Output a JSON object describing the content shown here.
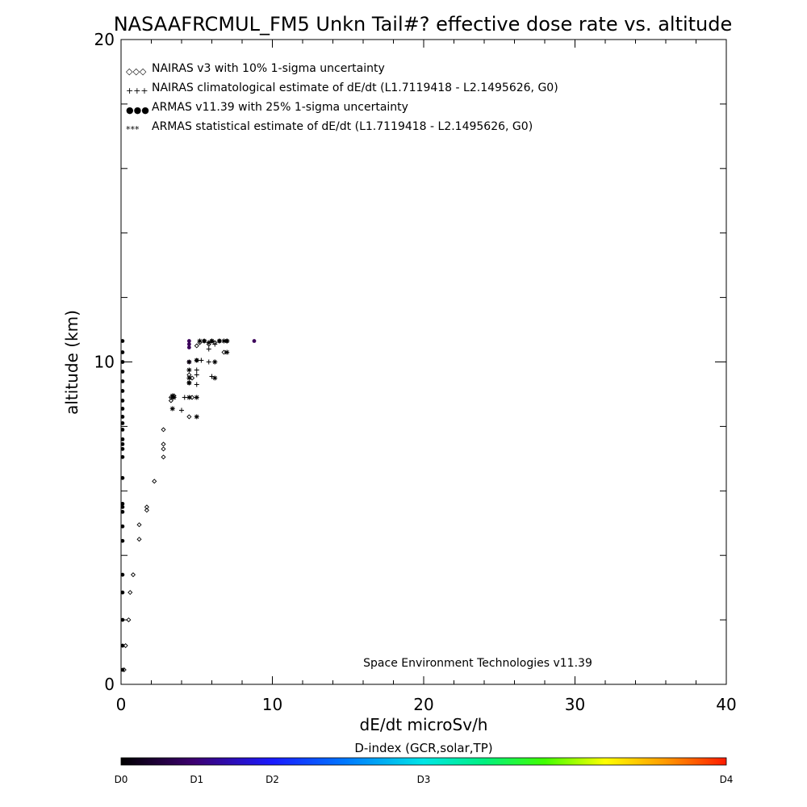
{
  "chart_data": {
    "type": "scatter",
    "title": "NASAAFRCMUL_FM5 Unkn Tail#? effective dose rate vs. altitude",
    "xlabel": "dE/dt microSv/h",
    "ylabel": "altitude (km)",
    "xlim": [
      0,
      40
    ],
    "ylim": [
      0,
      20
    ],
    "xticks": [
      "0",
      "10",
      "20",
      "30",
      "40"
    ],
    "yticks": [
      "0",
      "10",
      "20"
    ],
    "grid": false,
    "legend_position": "top-left",
    "legend": [
      {
        "marker_text": "◇◇◇",
        "label": "NAIRAS v3 with 10% 1-sigma uncertainty"
      },
      {
        "marker_text": "+++",
        "label": "NAIRAS climatological estimate of dE/dt (L1.7119418 - L2.1495626, G0)"
      },
      {
        "marker_text": "●●●",
        "label": "ARMAS v11.39 with 25% 1-sigma uncertainty"
      },
      {
        "marker_text": "***",
        "label": "ARMAS statistical estimate of dE/dt (L1.7119418 - L2.1495626, G0)"
      }
    ],
    "annotation": "Space Environment Technologies v11.39",
    "colorbar": {
      "title": "D-index (GCR,solar,TP)",
      "labels": [
        {
          "text": "D0",
          "value": 0
        },
        {
          "text": "D1",
          "value": 0.1
        },
        {
          "text": "D2",
          "value": 0.2
        },
        {
          "text": "D3",
          "value": 0.4
        },
        {
          "text": "D4",
          "value": 0.8
        }
      ],
      "range": [
        0,
        0.8
      ]
    },
    "series": [
      {
        "marker": "diamond",
        "color": "#000000",
        "points": [
          [
            0.2,
            0.45
          ],
          [
            0.3,
            1.2
          ],
          [
            0.5,
            2.0
          ],
          [
            0.6,
            2.85
          ],
          [
            0.8,
            3.4
          ],
          [
            1.2,
            4.5
          ],
          [
            1.2,
            4.95
          ],
          [
            1.7,
            5.4
          ],
          [
            1.7,
            5.5
          ],
          [
            2.2,
            6.3
          ],
          [
            2.8,
            7.05
          ],
          [
            2.8,
            7.3
          ],
          [
            2.8,
            7.45
          ],
          [
            2.8,
            7.9
          ],
          [
            3.3,
            8.8
          ],
          [
            3.3,
            8.9
          ],
          [
            3.5,
            8.95
          ],
          [
            4.5,
            8.3
          ],
          [
            4.7,
            8.9
          ],
          [
            4.5,
            9.35
          ],
          [
            4.5,
            9.6
          ],
          [
            4.7,
            9.5
          ],
          [
            5.0,
            10.05
          ],
          [
            5.0,
            10.5
          ],
          [
            5.2,
            10.6
          ],
          [
            5.5,
            10.65
          ],
          [
            5.8,
            10.55
          ],
          [
            6.0,
            10.65
          ],
          [
            6.2,
            10.6
          ],
          [
            6.5,
            10.65
          ],
          [
            6.8,
            10.3
          ],
          [
            7.0,
            10.65
          ]
        ]
      },
      {
        "marker": "plus",
        "color": "#000000",
        "points": [
          [
            4.0,
            8.5
          ],
          [
            4.2,
            8.9
          ],
          [
            5.0,
            9.3
          ],
          [
            5.0,
            9.6
          ],
          [
            5.0,
            9.75
          ],
          [
            5.3,
            10.05
          ],
          [
            5.8,
            10.0
          ],
          [
            5.8,
            10.4
          ],
          [
            6.0,
            9.55
          ],
          [
            6.2,
            10.0
          ],
          [
            6.2,
            10.55
          ],
          [
            6.5,
            10.65
          ],
          [
            7.0,
            10.65
          ]
        ]
      },
      {
        "marker": "dot",
        "color": "#000000",
        "points": [
          [
            0.1,
            0.45
          ],
          [
            0.1,
            1.2
          ],
          [
            0.1,
            2.0
          ],
          [
            0.1,
            2.85
          ],
          [
            0.1,
            3.4
          ],
          [
            0.1,
            4.45
          ],
          [
            0.1,
            4.9
          ],
          [
            0.1,
            5.35
          ],
          [
            0.1,
            5.5
          ],
          [
            0.1,
            5.6
          ],
          [
            0.1,
            6.4
          ],
          [
            0.1,
            7.05
          ],
          [
            0.1,
            7.3
          ],
          [
            0.1,
            7.45
          ],
          [
            0.1,
            7.6
          ],
          [
            0.1,
            7.9
          ],
          [
            0.1,
            8.1
          ],
          [
            0.1,
            8.3
          ],
          [
            0.1,
            8.55
          ],
          [
            0.1,
            8.8
          ],
          [
            0.1,
            9.1
          ],
          [
            0.1,
            9.4
          ],
          [
            0.1,
            9.7
          ],
          [
            0.1,
            10.0
          ],
          [
            0.1,
            10.3
          ],
          [
            0.1,
            10.65
          ]
        ]
      },
      {
        "marker": "dot",
        "color": "#3b005a",
        "points": [
          [
            4.5,
            10.0
          ],
          [
            4.5,
            10.45
          ],
          [
            4.5,
            10.55
          ],
          [
            4.5,
            10.65
          ],
          [
            8.8,
            10.65
          ]
        ]
      },
      {
        "marker": "asterisk",
        "color": "#000000",
        "points": [
          [
            3.4,
            8.55
          ],
          [
            3.4,
            8.9
          ],
          [
            3.4,
            8.95
          ],
          [
            3.5,
            8.9
          ],
          [
            4.5,
            8.9
          ],
          [
            4.5,
            9.35
          ],
          [
            4.5,
            9.5
          ],
          [
            4.5,
            9.75
          ],
          [
            4.5,
            10.0
          ],
          [
            5.0,
            8.3
          ],
          [
            5.0,
            8.9
          ],
          [
            5.0,
            10.05
          ],
          [
            5.2,
            10.65
          ],
          [
            5.5,
            10.65
          ],
          [
            5.8,
            10.6
          ],
          [
            6.0,
            10.65
          ],
          [
            6.2,
            9.5
          ],
          [
            6.2,
            10.0
          ],
          [
            6.5,
            10.65
          ],
          [
            6.8,
            10.65
          ],
          [
            7.0,
            10.3
          ],
          [
            7.0,
            10.65
          ]
        ]
      }
    ]
  }
}
